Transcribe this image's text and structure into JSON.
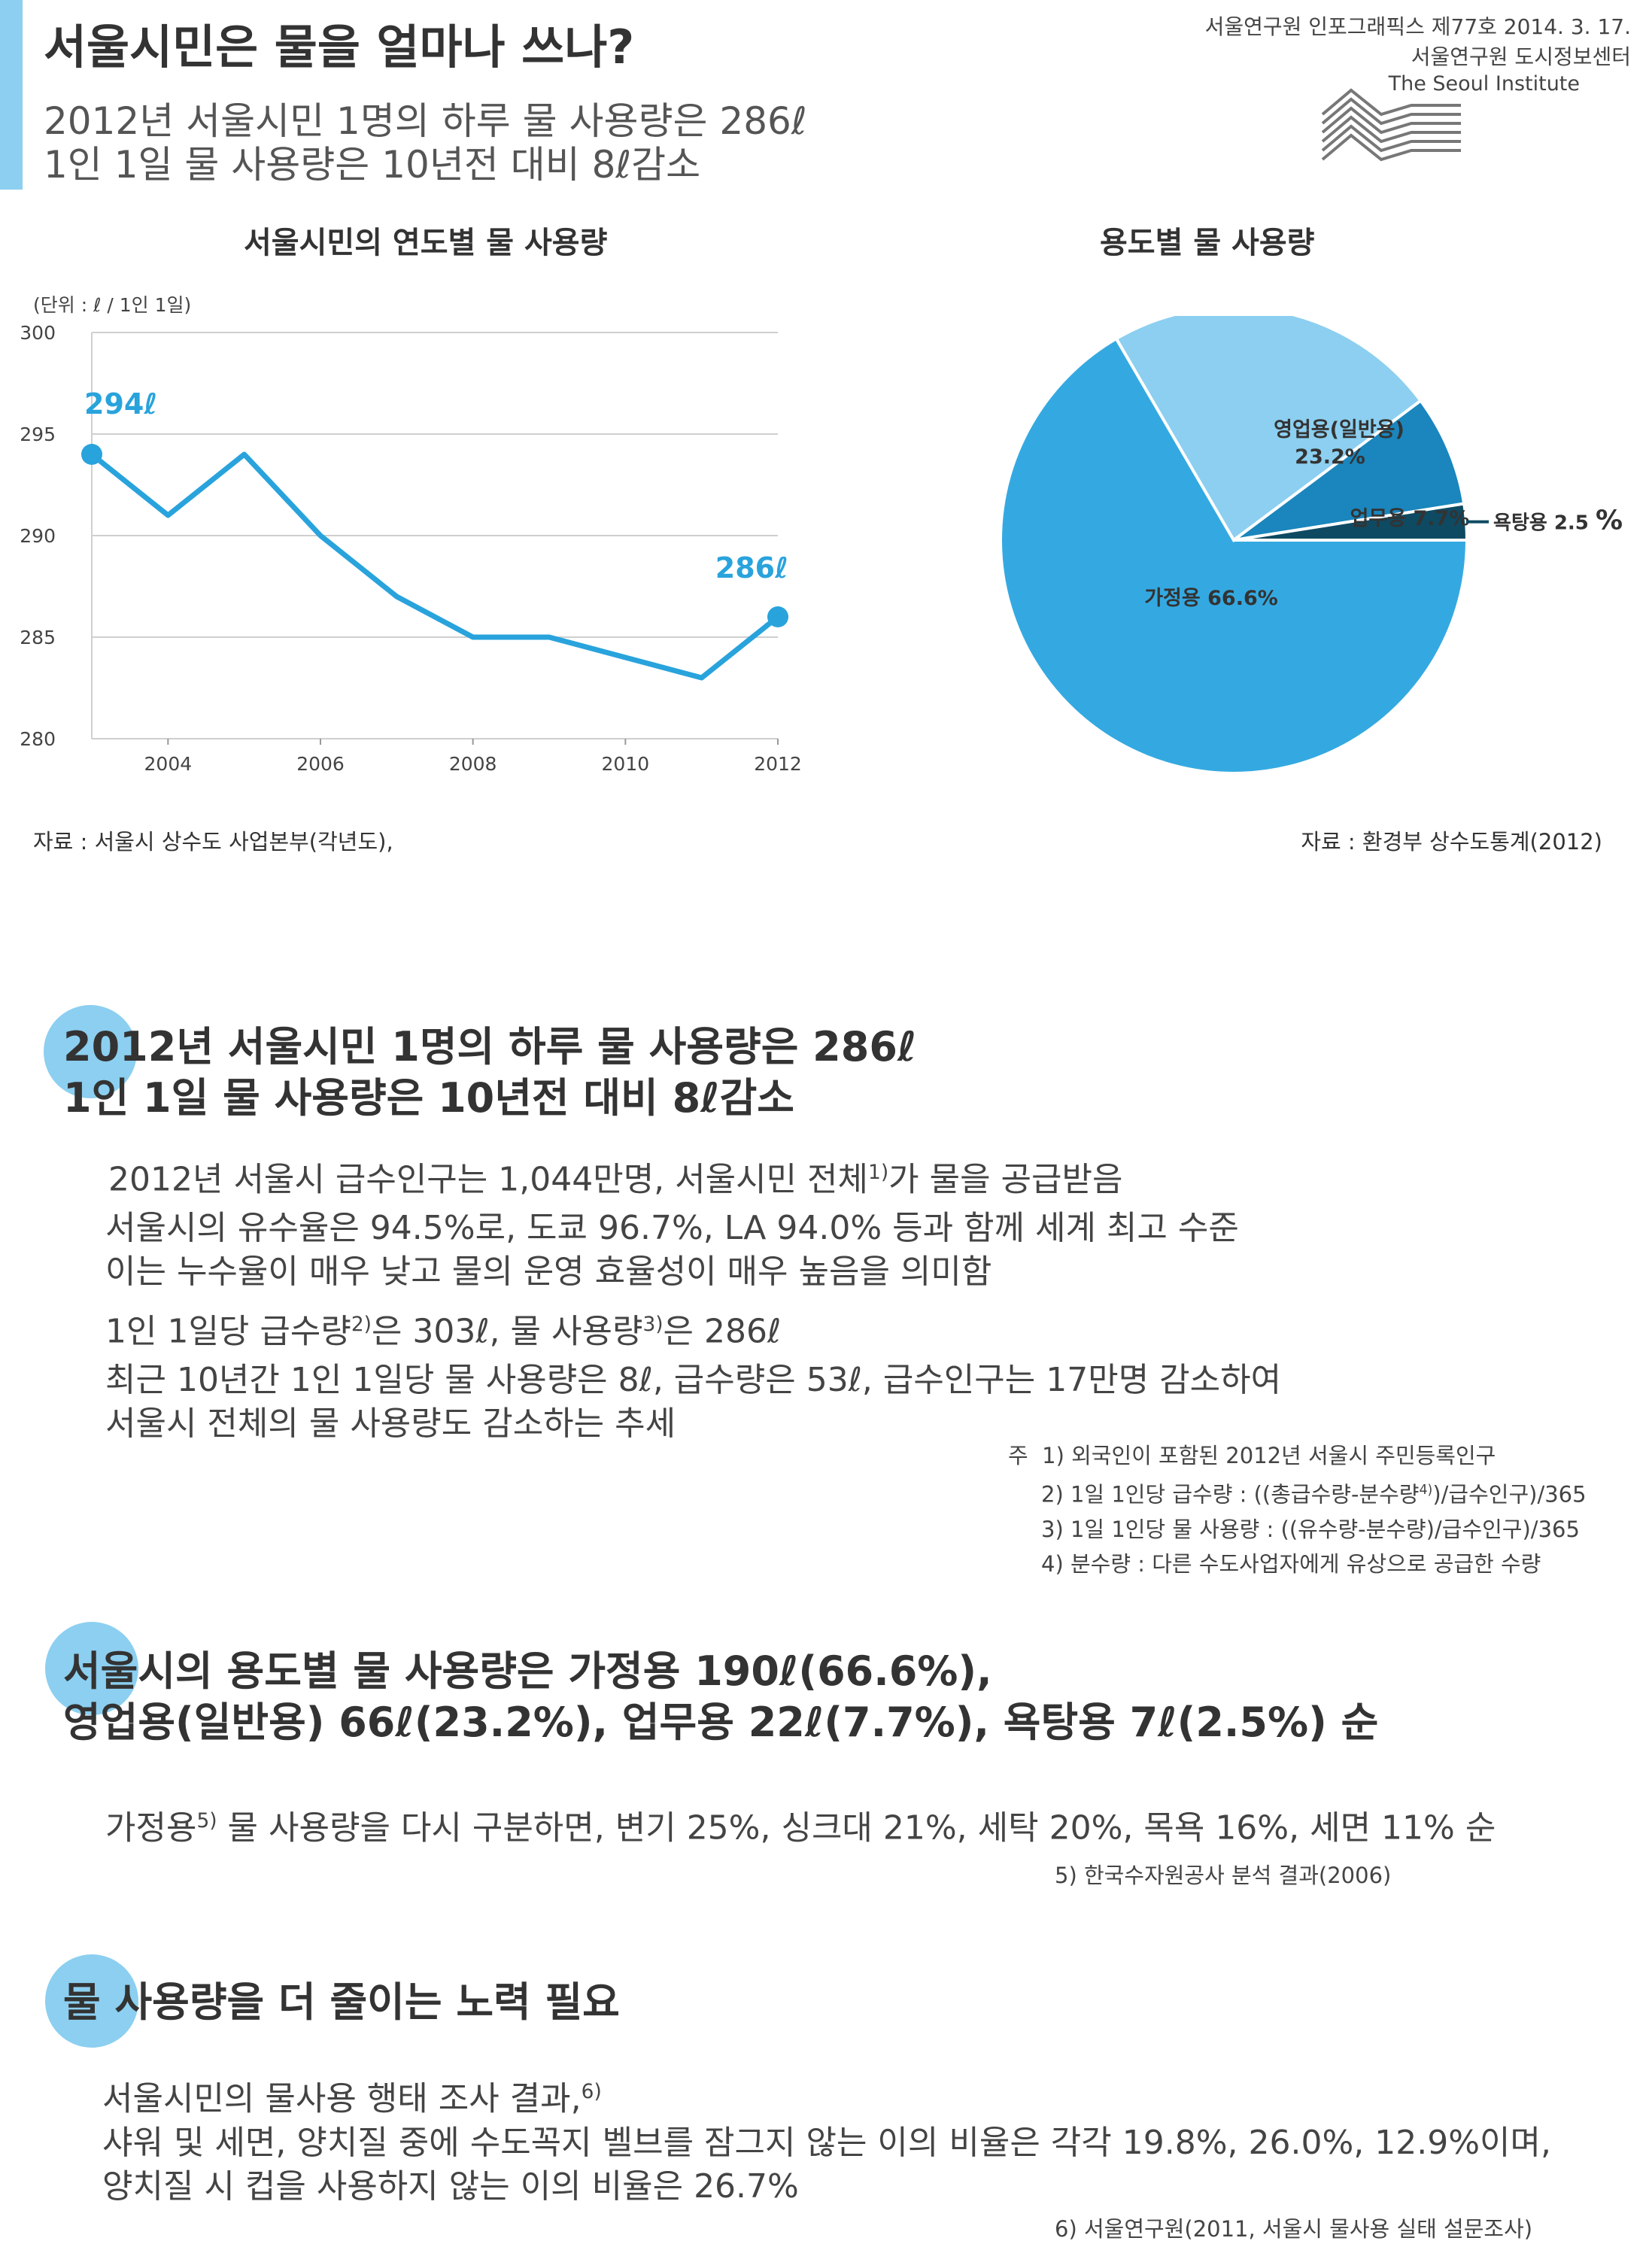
{
  "header": {
    "title": "서울시민은 물을 얼마나 쓰나?",
    "subtitle_line1": "2012년 서울시민 1명의 하루 물 사용량은 286ℓ",
    "subtitle_line2": "1인 1일 물 사용량은 10년전 대비 8ℓ감소",
    "publication": "서울연구원 인포그래픽스 제77호 2014. 3. 17.",
    "org": "서울연구원 도시정보센터",
    "org_en": "The Seoul Institute"
  },
  "line_chart": {
    "title": "서울시민의 연도별 물 사용량",
    "unit": "(단위 : ℓ / 1인 1일)",
    "source": "자료 : 서울시 상수도 사업본부(각년도),",
    "start_label": "294ℓ",
    "end_label": "286ℓ"
  },
  "pie_chart": {
    "title": "용도별 물 사용량",
    "source": "자료 : 환경부 상수도통계(2012)",
    "label_commercial_1": "영업용(일반용)",
    "label_commercial_2": "23.2%",
    "label_business": "업무용 7.7%",
    "label_bath": "욕탕용 2.5",
    "label_bath_pct": "%",
    "label_home": "가정용 66.6%"
  },
  "chart_data": [
    {
      "type": "line",
      "title": "서울시민의 연도별 물 사용량",
      "ylabel": "(단위 : ℓ / 1인 1일)",
      "x": [
        2003,
        2004,
        2005,
        2006,
        2007,
        2008,
        2009,
        2010,
        2011,
        2012
      ],
      "series": [
        {
          "values": [
            294,
            291,
            294,
            290,
            287,
            285,
            285,
            284,
            283,
            286
          ]
        }
      ],
      "xticks": [
        "2004",
        "2006",
        "2008",
        "2010",
        "2012"
      ],
      "yticks": [
        "280",
        "285",
        "290",
        "295",
        "300"
      ],
      "ylim": [
        280,
        300
      ],
      "grid": true,
      "color": "#29a3dc"
    },
    {
      "type": "pie",
      "title": "용도별 물 사용량",
      "categories": [
        "가정용",
        "영업용(일반용)",
        "업무용",
        "욕탕용"
      ],
      "values": [
        66.6,
        23.2,
        7.7,
        2.5
      ],
      "colors": [
        "#34a9e1",
        "#8ccff0",
        "#1a86bd",
        "#0e4a62"
      ]
    }
  ],
  "section1": {
    "head_line1": "2012년 서울시민 1명의 하루 물 사용량은 286ℓ",
    "head_line2": "1인 1일 물 사용량은 10년전 대비 8ℓ감소",
    "p1_a": "2012년 서울시 급수인구는 1,044만명, 서울시민 전체",
    "p1_sup": "1)",
    "p1_b": "가 물을 공급받음",
    "p2_line1": "서울시의 유수율은 94.5%로, 도쿄 96.7%, LA 94.0% 등과 함께 세계 최고 수준",
    "p2_line2": "이는 누수율이 매우 낮고 물의 운영 효율성이 매우 높음을 의미함",
    "p3_a": "1인 1일당 급수량",
    "p3_sup1": "2)",
    "p3_b": "은 303ℓ, 물 사용량",
    "p3_sup2": "3)",
    "p3_c": "은 286ℓ",
    "p4_line1": "최근 10년간 1인 1일당 물 사용량은 8ℓ, 급수량은 53ℓ, 급수인구는 17만명 감소하여",
    "p4_line2": "서울시 전체의 물 사용량도 감소하는 추세",
    "note_prefix": "주",
    "note1": "1) 외국인이 포함된 2012년 서울시 주민등록인구",
    "note2_a": "2) 1일 1인당 급수량 : ((총급수량-분수량",
    "note2_sup": "4)",
    "note2_b": ")/급수인구)/365",
    "note3": "3) 1일 1인당 물 사용량 : ((유수량-분수량)/급수인구)/365",
    "note4": "4) 분수량 : 다른 수도사업자에게 유상으로 공급한 수량"
  },
  "section2": {
    "head_line1": "서울시의 용도별 물 사용량은 가정용 190ℓ(66.6%),",
    "head_line2": "영업용(일반용) 66ℓ(23.2%), 업무용 22ℓ(7.7%), 욕탕용 7ℓ(2.5%) 순",
    "p1_a": "가정용",
    "p1_sup": "5)",
    "p1_b": " 물 사용량을 다시 구분하면, 변기 25%, 싱크대 21%, 세탁 20%, 목욕 16%, 세면 11% 순",
    "note": "5) 한국수자원공사 분석 결과(2006)"
  },
  "section3": {
    "head": "물 사용량을 더 줄이는 노력 필요",
    "p1_a": "서울시민의 물사용 행태 조사 결과,",
    "p1_sup": "6)",
    "p2": "샤워 및 세면, 양치질 중에 수도꼭지 벨브를 잠그지 않는 이의 비율은 각각 19.8%, 26.0%, 12.9%이며,",
    "p3": "양치질 시 컵을 사용하지 않는 이의 비율은 26.7%",
    "note": "6) 서울연구원(2011, 서울시 물사용 실태 설문조사)"
  }
}
